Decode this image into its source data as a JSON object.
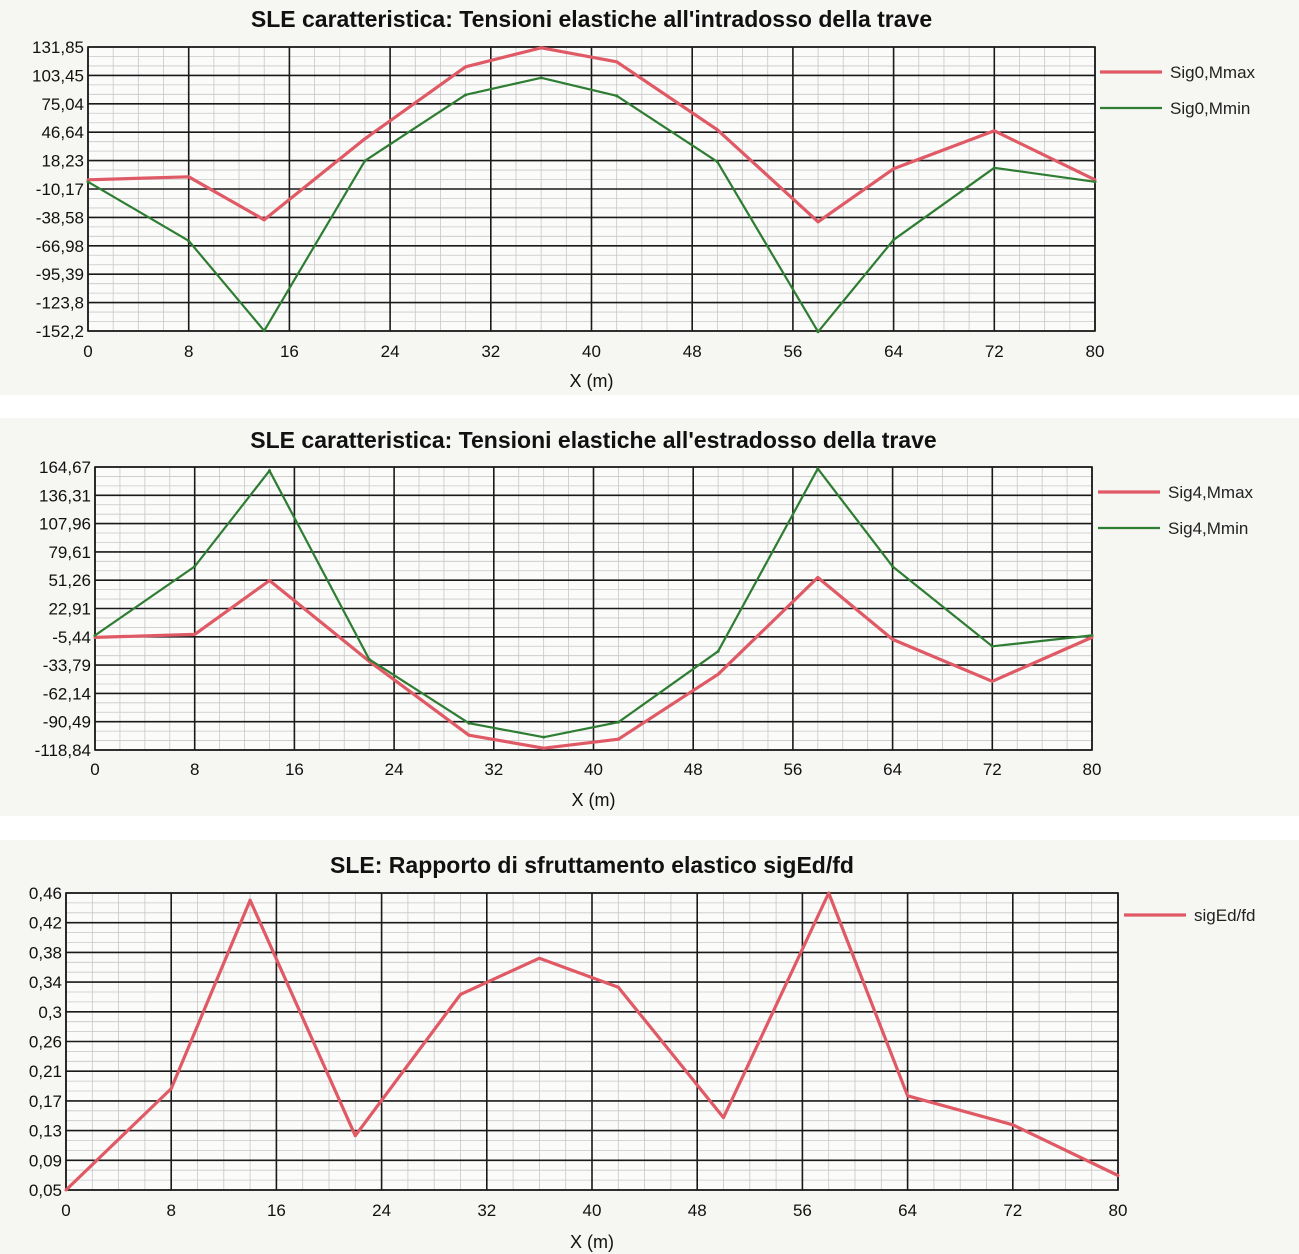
{
  "chart_data": [
    {
      "type": "line",
      "title": "SLE caratteristica: Tensioni elastiche all'intradosso della trave",
      "xlabel": "X (m)",
      "ylabel": "",
      "xlim": [
        0,
        80
      ],
      "ylim": [
        -152.2,
        131.85
      ],
      "x_ticks": [
        "0",
        "8",
        "16",
        "24",
        "32",
        "40",
        "48",
        "56",
        "64",
        "72",
        "80"
      ],
      "y_ticks": [
        "131,85",
        "103,45",
        "75,04",
        "46,64",
        "18,23",
        "-10,17",
        "-38,58",
        "-66,98",
        "-95,39",
        "-123,8",
        "-152,2"
      ],
      "grid": true,
      "legend_position": "right",
      "series": [
        {
          "name": "Sig0,Mmax",
          "color": "#e05a66",
          "x": [
            0,
            8,
            14,
            22,
            30,
            36,
            42,
            50,
            58,
            64,
            72,
            80
          ],
          "y": [
            -1,
            2,
            -41,
            40,
            112,
            131,
            117,
            49,
            -43,
            10,
            48,
            -1
          ]
        },
        {
          "name": "Sig0,Mmin",
          "color": "#2e7d32",
          "x": [
            0,
            8,
            14,
            22,
            30,
            36,
            42,
            50,
            58,
            64,
            72,
            80
          ],
          "y": [
            -3,
            -62,
            -152,
            18,
            84,
            101,
            83,
            17,
            -153,
            -61,
            11,
            -3
          ]
        }
      ]
    },
    {
      "type": "line",
      "title": "SLE caratteristica: Tensioni elastiche all'estradosso della trave",
      "xlabel": "X (m)",
      "ylabel": "",
      "xlim": [
        0,
        80
      ],
      "ylim": [
        -118.84,
        164.67
      ],
      "x_ticks": [
        "0",
        "8",
        "16",
        "24",
        "32",
        "40",
        "48",
        "56",
        "64",
        "72",
        "80"
      ],
      "y_ticks": [
        "164,67",
        "136,31",
        "107,96",
        "79,61",
        "51,26",
        "22,91",
        "-5,44",
        "-33,79",
        "-62,14",
        "-90,49",
        "-118,84"
      ],
      "grid": true,
      "legend_position": "right",
      "series": [
        {
          "name": "Sig4,Mmax",
          "color": "#e05a66",
          "x": [
            0,
            8,
            14,
            22,
            30,
            36,
            42,
            50,
            58,
            64,
            72,
            80
          ],
          "y": [
            -6,
            -3,
            51,
            -30,
            -104,
            -117,
            -108,
            -43,
            54,
            -8,
            -50,
            -6
          ]
        },
        {
          "name": "Sig4,Mmin",
          "color": "#2e7d32",
          "x": [
            0,
            8,
            14,
            22,
            30,
            36,
            42,
            50,
            58,
            64,
            72,
            80
          ],
          "y": [
            -4,
            65,
            161,
            -28,
            -92,
            -106,
            -91,
            -20,
            163,
            65,
            -15,
            -4
          ]
        }
      ]
    },
    {
      "type": "line",
      "title": "SLE: Rapporto di sfruttamento elastico sigEd/fd",
      "xlabel": "X (m)",
      "ylabel": "",
      "xlim": [
        0,
        80
      ],
      "ylim": [
        0.05,
        0.46
      ],
      "x_ticks": [
        "0",
        "8",
        "16",
        "24",
        "32",
        "40",
        "48",
        "56",
        "64",
        "72",
        "80"
      ],
      "y_ticks": [
        "0,46",
        "0,42",
        "0,38",
        "0,34",
        "0,3",
        "0,26",
        "0,21",
        "0,17",
        "0,13",
        "0,09",
        "0,05"
      ],
      "grid": true,
      "legend_position": "right",
      "series": [
        {
          "name": "sigEd/fd",
          "color": "#e05a66",
          "x": [
            0,
            8,
            14,
            22,
            30,
            36,
            42,
            50,
            58,
            64,
            72,
            80
          ],
          "y": [
            0.05,
            0.19,
            0.45,
            0.125,
            0.32,
            0.37,
            0.33,
            0.15,
            0.46,
            0.18,
            0.14,
            0.07
          ]
        }
      ]
    }
  ]
}
